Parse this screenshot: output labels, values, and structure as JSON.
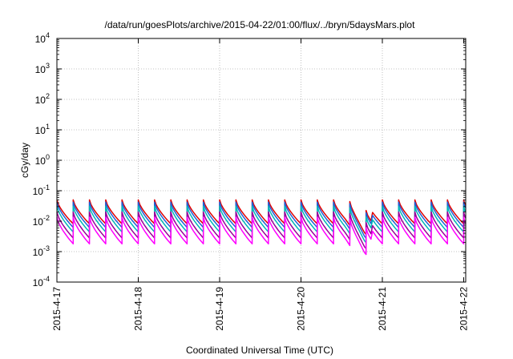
{
  "chart_data": {
    "type": "line",
    "title": "/data/run/goesPlots/archive/2015-04-22/01:00/flux/../bryn/5daysMars.plot",
    "xlabel": "Coordinated Universal Time (UTC)",
    "ylabel": "cGy/day",
    "yscale": "log",
    "ylim": [
      0.0001,
      10000
    ],
    "xlim": [
      "2015-4-17",
      "2015-4-22 01:00"
    ],
    "grid": true,
    "x_ticks": [
      {
        "label": "2015-4-17",
        "day": 0
      },
      {
        "label": "2015-4-18",
        "day": 1
      },
      {
        "label": "2015-4-19",
        "day": 2
      },
      {
        "label": "2015-4-20",
        "day": 3
      },
      {
        "label": "2015-4-21",
        "day": 4
      },
      {
        "label": "2015-4-22",
        "day": 5
      }
    ],
    "y_ticks": [
      {
        "base": "10",
        "exp": "-4",
        "value": 0.0001
      },
      {
        "base": "10",
        "exp": "-3",
        "value": 0.001
      },
      {
        "base": "10",
        "exp": "-2",
        "value": 0.01
      },
      {
        "base": "10",
        "exp": "-1",
        "value": 0.1
      },
      {
        "base": "10",
        "exp": "0",
        "value": 1
      },
      {
        "base": "10",
        "exp": "1",
        "value": 10
      },
      {
        "base": "10",
        "exp": "2",
        "value": 100
      },
      {
        "base": "10",
        "exp": "3",
        "value": 1000
      },
      {
        "base": "10",
        "exp": "4",
        "value": 10000
      }
    ],
    "sawtooth_period_days": 0.2,
    "series": [
      {
        "color": "#e00000",
        "peak": 0.05,
        "trough": 0.0082
      },
      {
        "color": "#2060d8",
        "peak": 0.042,
        "trough": 0.0062
      },
      {
        "color": "#00b8b8",
        "peak": 0.031,
        "trough": 0.0044
      },
      {
        "color": "#990099",
        "peak": 0.02,
        "trough": 0.0028
      },
      {
        "color": "#ff00ff",
        "peak": 0.0135,
        "trough": 0.0018
      }
    ],
    "dip": {
      "start_day": 3.55,
      "min_day": 3.78,
      "end_day": 3.88,
      "min_factor": 0.45
    }
  }
}
